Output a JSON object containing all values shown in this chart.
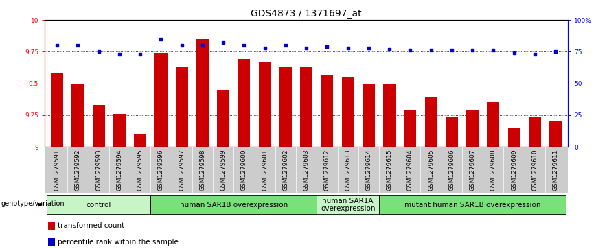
{
  "title": "GDS4873 / 1371697_at",
  "samples": [
    "GSM1279591",
    "GSM1279592",
    "GSM1279593",
    "GSM1279594",
    "GSM1279595",
    "GSM1279596",
    "GSM1279597",
    "GSM1279598",
    "GSM1279599",
    "GSM1279600",
    "GSM1279601",
    "GSM1279602",
    "GSM1279603",
    "GSM1279612",
    "GSM1279613",
    "GSM1279614",
    "GSM1279615",
    "GSM1279604",
    "GSM1279605",
    "GSM1279606",
    "GSM1279607",
    "GSM1279608",
    "GSM1279609",
    "GSM1279610",
    "GSM1279611"
  ],
  "bar_values": [
    9.58,
    9.5,
    9.33,
    9.26,
    9.1,
    9.74,
    9.63,
    9.85,
    9.45,
    9.69,
    9.67,
    9.63,
    9.63,
    9.57,
    9.55,
    9.5,
    9.5,
    9.29,
    9.39,
    9.24,
    9.29,
    9.36,
    9.15,
    9.24,
    9.2
  ],
  "percentile_values": [
    80,
    80,
    75,
    73,
    73,
    85,
    80,
    80,
    82,
    80,
    78,
    80,
    78,
    79,
    78,
    78,
    77,
    76,
    76,
    76,
    76,
    76,
    74,
    73,
    75
  ],
  "groups": [
    {
      "label": "control",
      "start": 0,
      "end": 5,
      "color": "#c8f5c8"
    },
    {
      "label": "human SAR1B overexpression",
      "start": 5,
      "end": 13,
      "color": "#7ae07a"
    },
    {
      "label": "human SAR1A\noverexpression",
      "start": 13,
      "end": 16,
      "color": "#c8f5c8"
    },
    {
      "label": "mutant human SAR1B overexpression",
      "start": 16,
      "end": 25,
      "color": "#7ae07a"
    }
  ],
  "ylim": [
    9.0,
    10.0
  ],
  "yticks": [
    9.0,
    9.25,
    9.5,
    9.75,
    10.0
  ],
  "ytick_labels": [
    "9",
    "9.25",
    "9.5",
    "9.75",
    "10"
  ],
  "right_yticks": [
    0,
    25,
    50,
    75,
    100
  ],
  "right_ytick_labels": [
    "0",
    "25",
    "50",
    "75",
    "100%"
  ],
  "bar_color": "#cc0000",
  "dot_color": "#0000cc",
  "title_fontsize": 10,
  "tick_fontsize": 6.5,
  "group_label_fontsize": 7.5,
  "legend_fontsize": 7.5,
  "genotype_label": "genotype/variation",
  "legend_items": [
    {
      "color": "#cc0000",
      "label": "transformed count"
    },
    {
      "color": "#0000cc",
      "label": "percentile rank within the sample"
    }
  ]
}
